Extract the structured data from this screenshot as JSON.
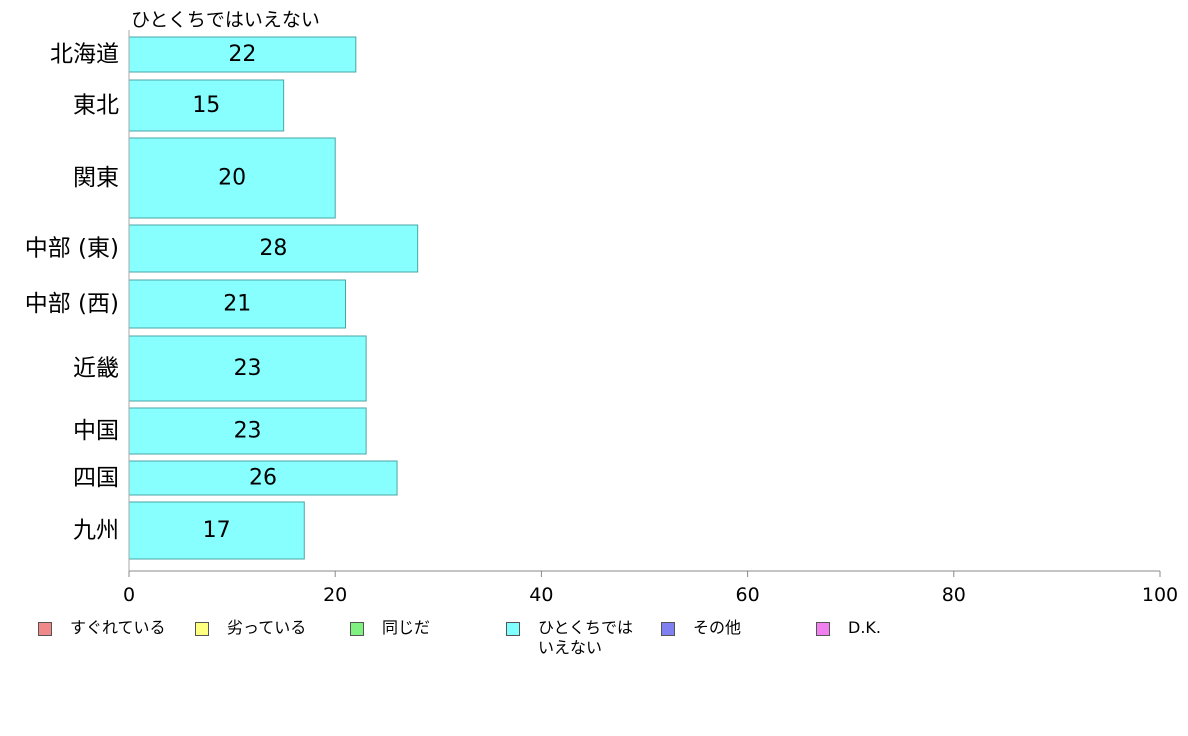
{
  "chart_data": {
    "type": "bar",
    "orientation": "horizontal",
    "series_title": "ひとくちではいえない",
    "categories": [
      "北海道",
      "東北",
      "関東",
      "中部 (東)",
      "中部 (西)",
      "近畿",
      "中国",
      "四国",
      "九州"
    ],
    "series": [
      {
        "name": "ひとくちではいえない",
        "values": [
          22,
          15,
          20,
          28,
          21,
          23,
          23,
          26,
          17
        ]
      }
    ],
    "xlim": [
      0,
      100
    ],
    "xticks": [
      0,
      20,
      40,
      60,
      80,
      100
    ],
    "xtick_labels": [
      "0",
      "20",
      "40",
      "60",
      "80",
      "100"
    ],
    "grid": false,
    "legend_position": "bottom",
    "legend": [
      {
        "label": "すぐれている",
        "color": "#f08a8a"
      },
      {
        "label": "劣っている",
        "color": "#ffff80"
      },
      {
        "label": "同じだ",
        "color": "#80f080"
      },
      {
        "label": "ひとくちでは\nいえない",
        "color": "#80ffff"
      },
      {
        "label": "その他",
        "color": "#8080f0"
      },
      {
        "label": "D.K.",
        "color": "#f080f0"
      }
    ],
    "bar_color": "#88ffff",
    "bar_border_color": "#4aa6a6"
  }
}
